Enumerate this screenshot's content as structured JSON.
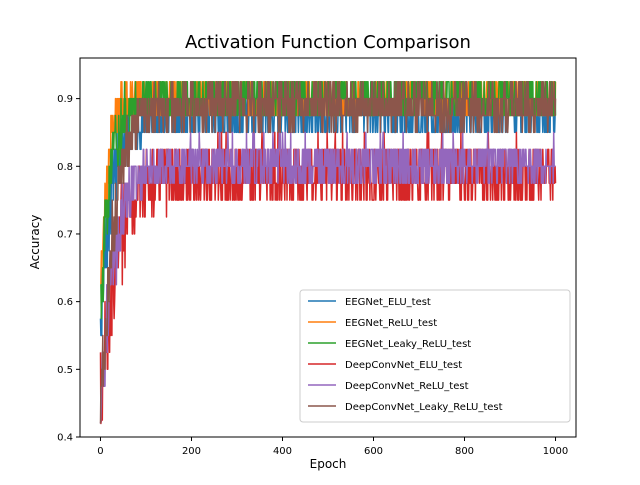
{
  "chart_data": {
    "type": "line",
    "title": "Activation Function Comparison",
    "xlabel": "Epoch",
    "ylabel": "Accuracy",
    "xlim": [
      -45,
      1045
    ],
    "ylim": [
      0.4,
      0.96
    ],
    "x_ticks": [
      0,
      200,
      400,
      600,
      800,
      1000
    ],
    "y_ticks": [
      0.4,
      0.5,
      0.6,
      0.7,
      0.8,
      0.9
    ],
    "grid": false,
    "legend_position": "lower-right",
    "series": [
      {
        "name": "EEGNet_ELU_test",
        "color": "#1f77b4",
        "start": 0.55,
        "plateau": 0.875,
        "rise": 25,
        "jitter": 0.035,
        "hi": 0.95,
        "lo": 0.6
      },
      {
        "name": "EEGNet_ReLU_test",
        "color": "#ff7f0e",
        "start": 0.6,
        "plateau": 0.9,
        "rise": 15,
        "jitter": 0.03,
        "hi": 0.95,
        "lo": 0.6
      },
      {
        "name": "EEGNet_Leaky_ReLU_test",
        "color": "#2ca02c",
        "start": 0.58,
        "plateau": 0.9,
        "rise": 22,
        "jitter": 0.03,
        "hi": 0.95,
        "lo": 0.6
      },
      {
        "name": "DeepConvNet_ELU_test",
        "color": "#d62728",
        "start": 0.45,
        "plateau": 0.79,
        "rise": 35,
        "jitter": 0.05,
        "hi": 0.875,
        "lo": 0.7
      },
      {
        "name": "DeepConvNet_ReLU_test",
        "color": "#9467bd",
        "start": 0.43,
        "plateau": 0.805,
        "rise": 30,
        "jitter": 0.035,
        "hi": 0.875,
        "lo": 0.725
      },
      {
        "name": "DeepConvNet_Leaky_ReLU_test",
        "color": "#8c564b",
        "start": 0.425,
        "plateau": 0.89,
        "rise": 30,
        "jitter": 0.035,
        "hi": 0.95,
        "lo": 0.8
      }
    ]
  }
}
